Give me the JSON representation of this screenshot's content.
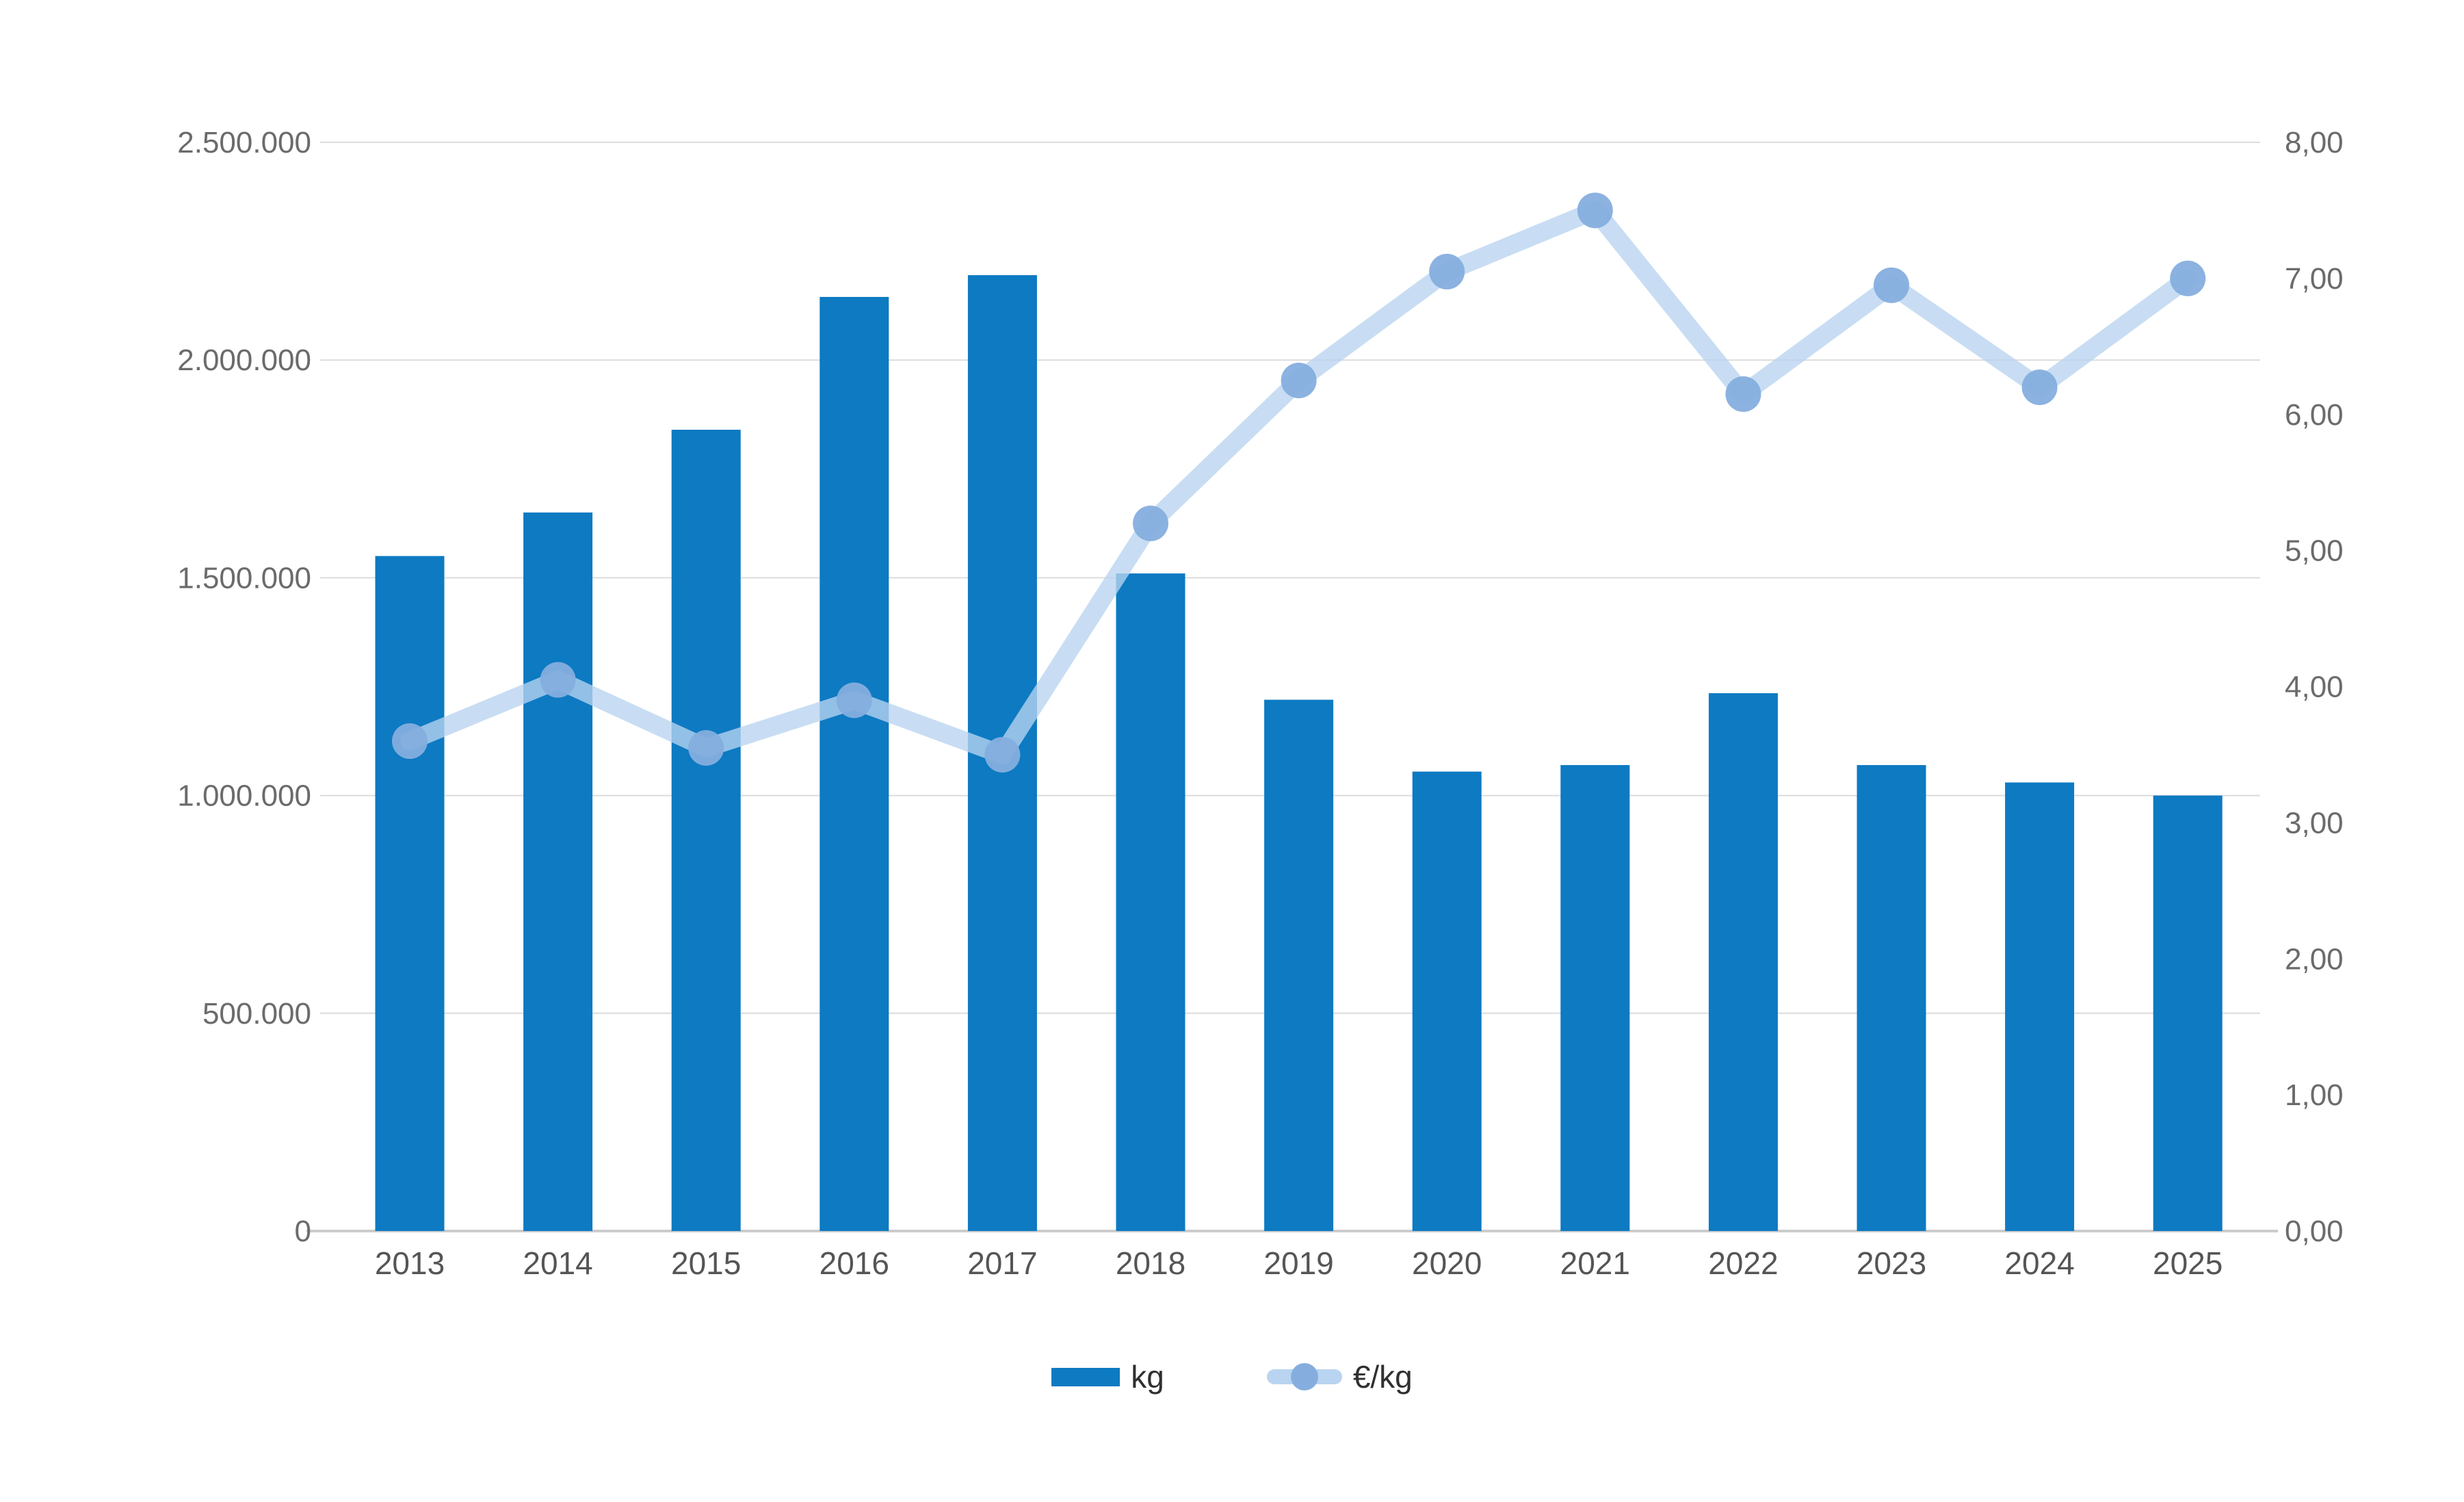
{
  "legend": {
    "kg_label": "kg",
    "eur_label": "€/kg"
  },
  "chart_data": {
    "type": "bar",
    "subtype": "combo bar+line, dual axis",
    "categories": [
      "2013",
      "2014",
      "2015",
      "2016",
      "2017",
      "2018",
      "2019",
      "2020",
      "2021",
      "2022",
      "2023",
      "2024",
      "2025"
    ],
    "series": [
      {
        "name": "kg",
        "type": "bar",
        "axis": "left",
        "values": [
          1550000,
          1650000,
          1840000,
          2145000,
          2195000,
          1510000,
          1220000,
          1055000,
          1070000,
          1235000,
          1070000,
          1030000,
          1000000
        ]
      },
      {
        "name": "€/kg",
        "type": "line",
        "axis": "right",
        "values": [
          3.6,
          4.05,
          3.55,
          3.9,
          3.5,
          5.2,
          6.25,
          7.05,
          7.5,
          6.15,
          6.95,
          6.2,
          7.0
        ]
      }
    ],
    "title": "",
    "xlabel": "",
    "ylabel_left": "kg",
    "ylabel_right": "€/kg",
    "left_axis": {
      "min": 0,
      "max": 2500000,
      "ticks": [
        "0",
        "500.000",
        "1.000.000",
        "1.500.000",
        "2.000.000",
        "2.500.000"
      ]
    },
    "right_axis": {
      "min": 0,
      "max": 8,
      "ticks": [
        "0,00",
        "1,00",
        "2,00",
        "3,00",
        "4,00",
        "5,00",
        "6,00",
        "7,00",
        "8,00"
      ]
    },
    "grid": true,
    "legend_position": "bottom",
    "colors": {
      "bar": "#0d7ac2",
      "line": "#b9d4f0",
      "line_opacity": 0.78,
      "marker": "#85aede",
      "grid": "#dcdcdc",
      "baseline": "#cccccc",
      "tick_text": "#6b6b6b",
      "year_text": "#555555",
      "legend_text": "#303030"
    }
  }
}
